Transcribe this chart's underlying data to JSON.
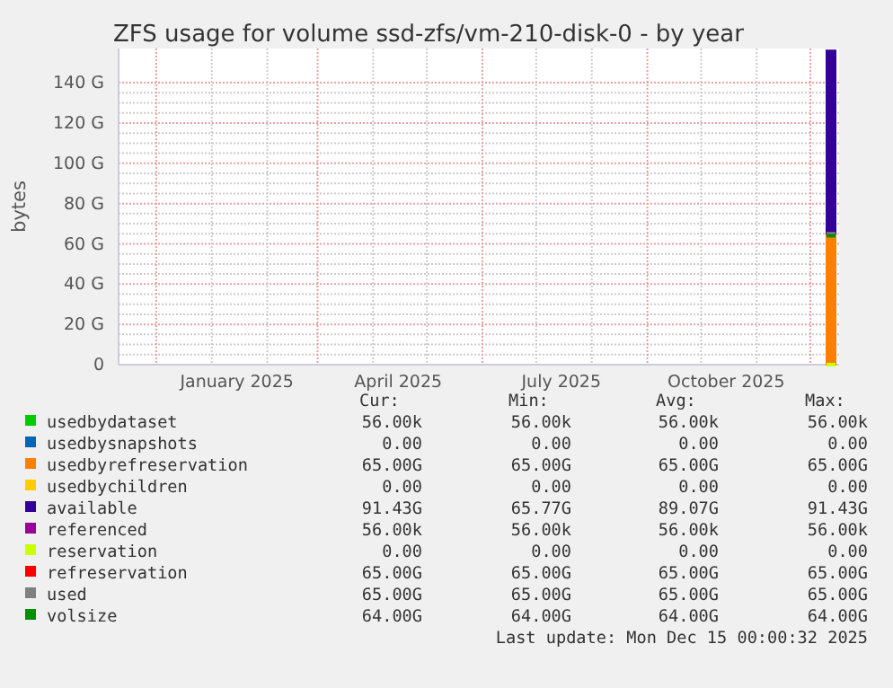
{
  "chart_data": {
    "type": "area",
    "title": "ZFS usage for volume ssd-zfs/vm-210-disk-0 - by year",
    "ylabel": "bytes",
    "stacked": true,
    "grid": true,
    "legend": "bottom",
    "x": [
      "2025-12-10",
      "2025-12-12",
      "2025-12-15"
    ],
    "xlim": [
      "2024-11-10",
      "2025-12-17"
    ],
    "xticks": [
      {
        "value": "2025-01-15",
        "label": "January 2025"
      },
      {
        "value": "2025-04-15",
        "label": "April 2025"
      },
      {
        "value": "2025-07-15",
        "label": "July 2025"
      },
      {
        "value": "2025-10-15",
        "label": "October 2025"
      }
    ],
    "ylim": [
      0,
      157
    ],
    "yticks": [
      {
        "value": 0,
        "label": "0"
      },
      {
        "value": 20,
        "label": "20 G"
      },
      {
        "value": 40,
        "label": "40 G"
      },
      {
        "value": 60,
        "label": "60 G"
      },
      {
        "value": 80,
        "label": "80 G"
      },
      {
        "value": 100,
        "label": "100 G"
      },
      {
        "value": 120,
        "label": "120 G"
      },
      {
        "value": 140,
        "label": "140 G"
      }
    ],
    "series": [
      {
        "name": "usedbydataset",
        "color": "#00cc00",
        "values": [
          null,
          null,
          null
        ]
      },
      {
        "name": "usedbysnapshots",
        "color": "#0066b3",
        "values": [
          null,
          null,
          null
        ]
      },
      {
        "name": "usedbyrefreservation",
        "color": "#ff8000",
        "values": [
          65,
          65,
          65
        ]
      },
      {
        "name": "usedbychildren",
        "color": "#ffcc00",
        "values": [
          null,
          null,
          null
        ]
      },
      {
        "name": "available",
        "color": "#330099",
        "values": [
          91,
          91,
          91
        ]
      },
      {
        "name": "referenced",
        "color": "#990099",
        "type": "line",
        "values": [
          null,
          null,
          null
        ]
      },
      {
        "name": "reservation",
        "color": "#ccff00",
        "type": "line",
        "values": [
          0,
          0,
          0
        ]
      },
      {
        "name": "refreservation",
        "color": "#ff0000",
        "type": "line",
        "values": [
          null,
          null,
          null
        ]
      },
      {
        "name": "used",
        "color": "#808080",
        "type": "line",
        "values": [
          65,
          65,
          65
        ]
      },
      {
        "name": "volsize",
        "color": "#008f00",
        "type": "line",
        "values": [
          64,
          64,
          64
        ]
      }
    ],
    "annotations": [
      "Cur:",
      "Min:",
      "Avg:",
      "Max:",
      "56.00k",
      "56.00k",
      "56.00k",
      "56.00k",
      "0.00",
      "0.00",
      "0.00",
      "0.00",
      "65.00G",
      "65.00G",
      "65.00G",
      "65.00G",
      "0.00",
      "0.00",
      "0.00",
      "0.00",
      "91.43G",
      "65.77G",
      "89.07G",
      "91.43G",
      "56.00k",
      "56.00k",
      "56.00k",
      "56.00k",
      "0.00",
      "0.00",
      "0.00",
      "0.00",
      "65.00G",
      "65.00G",
      "65.00G",
      "65.00G",
      "65.00G",
      "65.00G",
      "65.00G",
      "65.00G",
      "64.00G",
      "64.00G",
      "64.00G",
      "64.00G",
      "Last update: Mon Dec 15 00:00:32 2025"
    ]
  }
}
